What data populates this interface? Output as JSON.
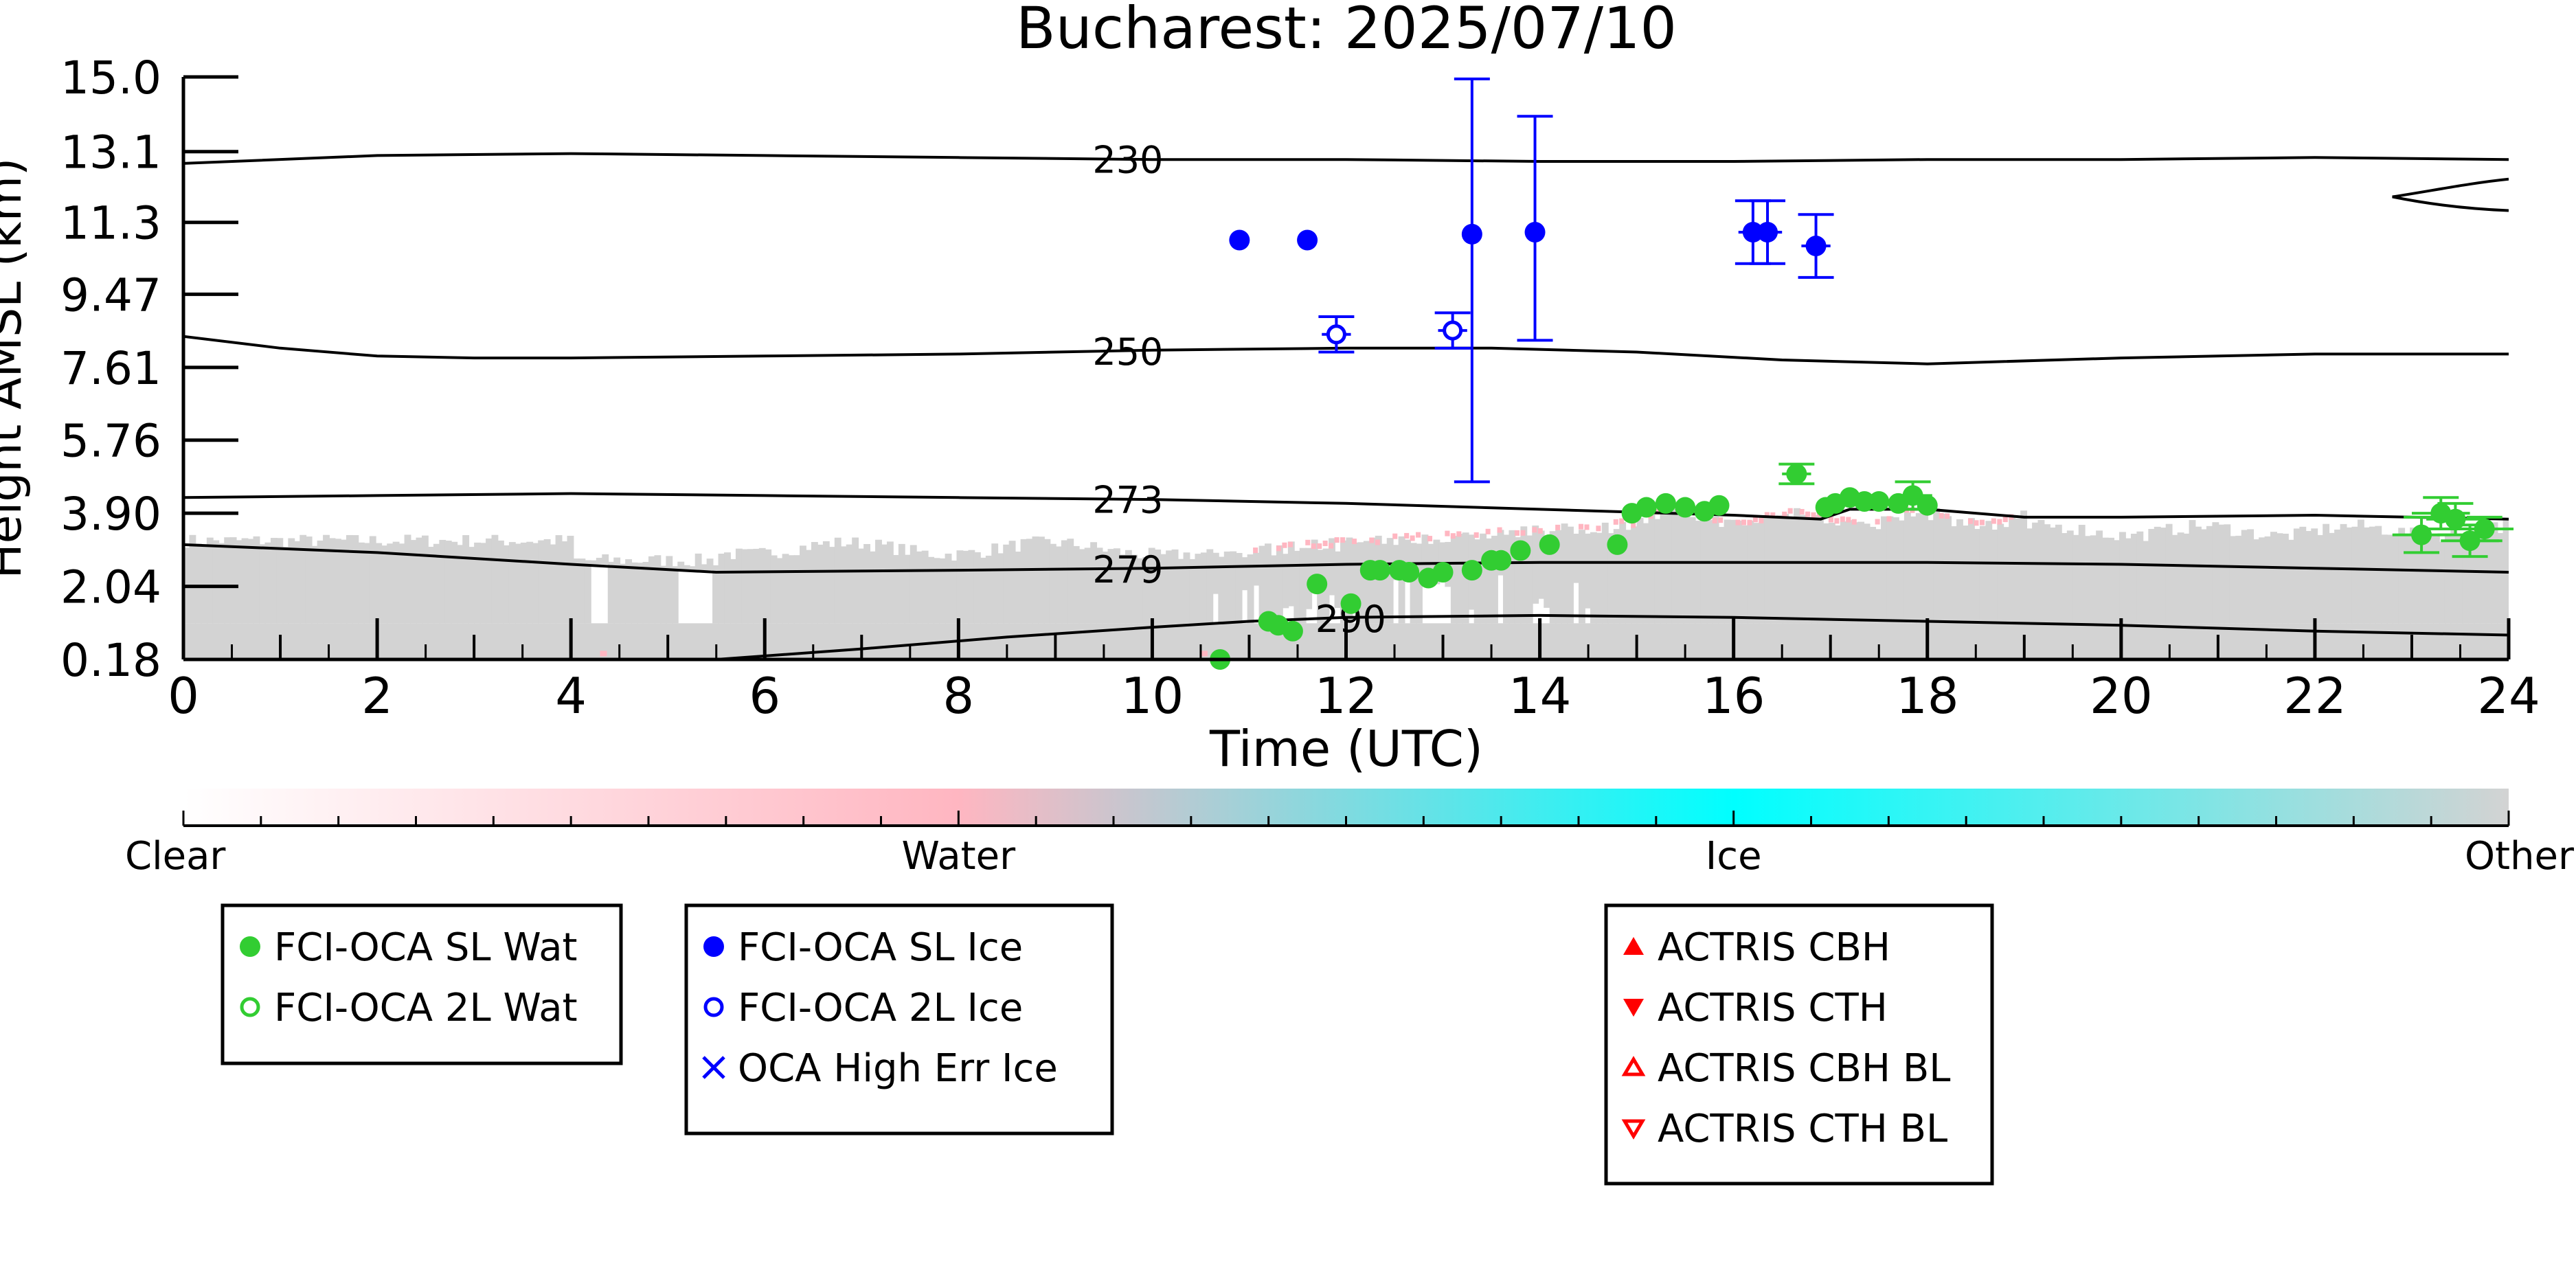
{
  "chart_data": {
    "type": "scatter",
    "title": "Bucharest: 2025/07/10",
    "xlabel": "Time (UTC)",
    "ylabel": "Height AMSL (km)",
    "xlim": [
      0,
      24
    ],
    "ylim": [
      0.18,
      15.0
    ],
    "x_ticks": [
      0,
      2,
      4,
      6,
      8,
      10,
      12,
      14,
      16,
      18,
      20,
      22,
      24
    ],
    "x_tick_labels": [
      "0",
      "2",
      "4",
      "6",
      "8",
      "10",
      "12",
      "14",
      "16",
      "18",
      "20",
      "22",
      "24"
    ],
    "y_ticks": [
      0.18,
      2.04,
      3.9,
      5.76,
      7.61,
      9.47,
      11.3,
      13.1,
      15.0
    ],
    "y_tick_labels": [
      "0.18",
      "2.04",
      "3.90",
      "5.76",
      "7.61",
      "9.47",
      "11.3",
      "13.1",
      "15.0"
    ],
    "grid": false,
    "background_classification": {
      "description_colorbar": true,
      "colorbar_labels": [
        "Clear",
        "Water",
        "Ice",
        "Other"
      ],
      "colorbar_colors": [
        "#ffffff",
        "#ffb6c1",
        "#00ffff",
        "#d3d3d3"
      ],
      "cloud_layer_color": "#d3d3d3",
      "water_color": "#ffb6c1"
    },
    "temperature_contours": [
      {
        "label": "230",
        "label_x": 9.5,
        "x": [
          0,
          2,
          4,
          6,
          8,
          10,
          12,
          14,
          16,
          18,
          20,
          22,
          24
        ],
        "y": [
          12.8,
          13.0,
          13.05,
          13.0,
          12.95,
          12.9,
          12.9,
          12.85,
          12.85,
          12.9,
          12.9,
          12.95,
          12.9
        ]
      },
      {
        "label": "250",
        "label_x": 9.5,
        "x": [
          0,
          1,
          2,
          3,
          4,
          6,
          8,
          10,
          12,
          13.5,
          15,
          16.5,
          18,
          20,
          22,
          24
        ],
        "y": [
          8.4,
          8.1,
          7.9,
          7.85,
          7.85,
          7.9,
          7.95,
          8.05,
          8.1,
          8.1,
          8.0,
          7.8,
          7.7,
          7.85,
          7.95,
          7.95
        ]
      },
      {
        "label": "273",
        "label_x": 9.5,
        "x": [
          0,
          2,
          4,
          6,
          8,
          10,
          12,
          14,
          16,
          16.9,
          17.2,
          18,
          19,
          20,
          22,
          24
        ],
        "y": [
          4.3,
          4.35,
          4.4,
          4.35,
          4.3,
          4.25,
          4.15,
          4.0,
          3.85,
          3.75,
          4.0,
          4.0,
          3.8,
          3.8,
          3.85,
          3.75
        ]
      },
      {
        "label": "279",
        "label_x": 9.5,
        "x": [
          0,
          2,
          4,
          5.5,
          8,
          10,
          12,
          14,
          16,
          18,
          20,
          22,
          24
        ],
        "y": [
          3.1,
          2.9,
          2.6,
          2.4,
          2.45,
          2.5,
          2.6,
          2.65,
          2.65,
          2.65,
          2.6,
          2.5,
          2.4
        ]
      },
      {
        "label": "290",
        "label_x": 11.8,
        "x": [
          5.5,
          7,
          8.5,
          10,
          11,
          12,
          14,
          16,
          18,
          20,
          22,
          24
        ],
        "y": [
          0.18,
          0.45,
          0.75,
          1.0,
          1.15,
          1.25,
          1.3,
          1.25,
          1.15,
          1.05,
          0.9,
          0.8
        ]
      }
    ],
    "series": [
      {
        "name": "FCI-OCA SL Wat",
        "marker": "filled-circle",
        "color": "#32cd32",
        "x": [
          10.7,
          11.2,
          11.3,
          11.45,
          11.7,
          12.05,
          12.25,
          12.35,
          12.55,
          12.65,
          12.85,
          13.0,
          13.3,
          13.5,
          13.6,
          13.8,
          14.1,
          14.8,
          14.95,
          15.1,
          15.3,
          15.5,
          15.7,
          15.85,
          16.65,
          16.95,
          17.05,
          17.2,
          17.35,
          17.5,
          17.7,
          17.85,
          18.0,
          23.1,
          23.3,
          23.45,
          23.6,
          23.75
        ],
        "y": [
          0.18,
          1.15,
          1.05,
          0.9,
          2.1,
          1.6,
          2.45,
          2.45,
          2.45,
          2.4,
          2.25,
          2.4,
          2.45,
          2.7,
          2.7,
          2.95,
          3.1,
          3.1,
          3.9,
          4.05,
          4.15,
          4.05,
          3.95,
          4.1,
          4.9,
          4.05,
          4.15,
          4.3,
          4.2,
          4.2,
          4.15,
          4.35,
          4.1,
          3.35,
          3.9,
          3.75,
          3.2,
          3.5
        ],
        "xerr": [
          0.0,
          0.0,
          0.0,
          0.0,
          0.0,
          0.0,
          0.0,
          0.0,
          0.0,
          0.0,
          0.0,
          0.0,
          0.0,
          0.0,
          0.0,
          0.0,
          0.0,
          0.0,
          0.0,
          0.0,
          0.0,
          0.0,
          0.0,
          0.0,
          0.15,
          0.0,
          0.0,
          0.0,
          0.0,
          0.0,
          0.0,
          0.2,
          0.0,
          0.3,
          0.3,
          0.3,
          0.3,
          0.3
        ],
        "yerr": [
          0.0,
          0.0,
          0.0,
          0.0,
          0.0,
          0.0,
          0.0,
          0.0,
          0.0,
          0.0,
          0.0,
          0.0,
          0.0,
          0.0,
          0.0,
          0.0,
          0.0,
          0.0,
          0.0,
          0.0,
          0.0,
          0.0,
          0.0,
          0.0,
          0.25,
          0.0,
          0.0,
          0.0,
          0.0,
          0.0,
          0.0,
          0.35,
          0.0,
          0.45,
          0.4,
          0.4,
          0.4,
          0.3
        ]
      },
      {
        "name": "FCI-OCA 2L Wat",
        "marker": "open-circle",
        "color": "#32cd32",
        "x": [],
        "y": []
      },
      {
        "name": "FCI-OCA SL Ice",
        "marker": "filled-circle",
        "color": "#0000ff",
        "x": [
          10.9,
          11.6,
          13.3,
          13.95,
          16.2,
          16.35,
          16.85
        ],
        "y": [
          10.85,
          10.85,
          11.0,
          11.05,
          11.05,
          11.05,
          10.7
        ],
        "yerr_low": [
          0.0,
          0.0,
          6.3,
          2.75,
          0.8,
          0.8,
          0.8
        ],
        "yerr_high": [
          0.0,
          0.0,
          3.95,
          2.95,
          0.8,
          0.8,
          0.8
        ],
        "xerr": [
          0.0,
          0.0,
          0.0,
          0.0,
          0.15,
          0.15,
          0.15
        ]
      },
      {
        "name": "FCI-OCA 2L Ice",
        "marker": "open-circle",
        "color": "#0000ff",
        "x": [
          11.9,
          13.1
        ],
        "y": [
          8.45,
          8.55
        ],
        "yerr": [
          0.45,
          0.45
        ],
        "xerr": [
          0.15,
          0.15
        ]
      },
      {
        "name": "OCA High Err Ice",
        "marker": "x",
        "color": "#0000ff",
        "x": [],
        "y": []
      },
      {
        "name": "ACTRIS CBH",
        "marker": "filled-triangle-up",
        "color": "#ff0000",
        "x": [],
        "y": []
      },
      {
        "name": "ACTRIS CTH",
        "marker": "filled-triangle-down",
        "color": "#ff0000",
        "x": [],
        "y": []
      },
      {
        "name": "ACTRIS CBH BL",
        "marker": "open-triangle-up",
        "color": "#ff0000",
        "x": [],
        "y": []
      },
      {
        "name": "ACTRIS CTH BL",
        "marker": "open-triangle-down",
        "color": "#ff0000",
        "x": [],
        "y": []
      }
    ],
    "legend_groups": [
      {
        "entries": [
          "FCI-OCA SL Wat",
          "FCI-OCA 2L Wat"
        ]
      },
      {
        "entries": [
          "FCI-OCA SL Ice",
          "FCI-OCA 2L Ice",
          "OCA High Err Ice"
        ]
      },
      {
        "entries": [
          "ACTRIS CBH",
          "ACTRIS CTH",
          "ACTRIS CBH BL",
          "ACTRIS CTH BL"
        ]
      }
    ],
    "legend_placement": "below"
  }
}
